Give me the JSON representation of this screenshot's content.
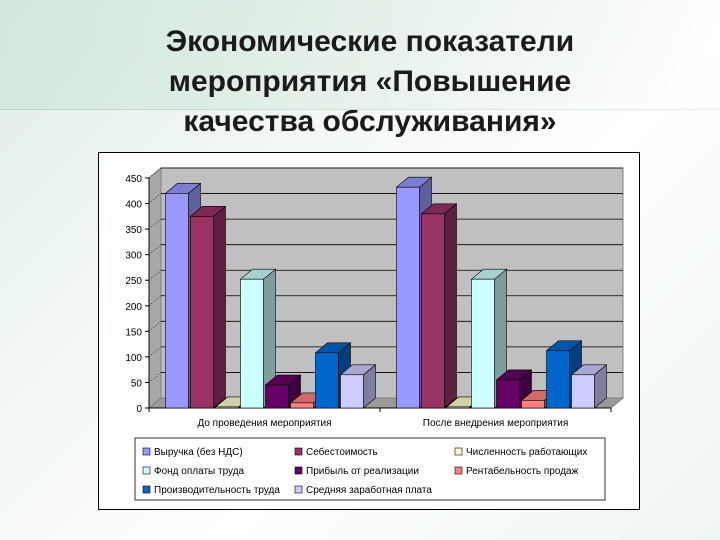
{
  "slide": {
    "title_lines": [
      "Экономические показатели",
      "мероприятия «Повышение",
      "качества обслуживания»"
    ]
  },
  "chart_data": {
    "type": "bar",
    "title": "",
    "xlabel": "",
    "ylabel": "",
    "ylim": [
      0,
      450
    ],
    "yticks": [
      0,
      50,
      100,
      150,
      200,
      250,
      300,
      350,
      400,
      450
    ],
    "categories": [
      "До проведения мероприятия",
      "После внедрения мероприятия"
    ],
    "grid": true,
    "three_d": true,
    "legend_position": "bottom",
    "series": [
      {
        "name": "Выручка (без НДС)",
        "values": [
          420,
          432
        ],
        "color": "#9999ff"
      },
      {
        "name": "Себестоимость",
        "values": [
          375,
          380
        ],
        "color": "#993366"
      },
      {
        "name": "Численность работающих",
        "values": [
          2,
          2
        ],
        "color": "#ffffcc"
      },
      {
        "name": "Фонд оплаты труда",
        "values": [
          252,
          252
        ],
        "color": "#ccffff"
      },
      {
        "name": "Прибыль от реализации",
        "values": [
          45,
          55
        ],
        "color": "#660066"
      },
      {
        "name": "Рентабельность продаж",
        "values": [
          10,
          15
        ],
        "color": "#ff8080"
      },
      {
        "name": "Производительность труда",
        "values": [
          108,
          112
        ],
        "color": "#0066cc"
      },
      {
        "name": "Средняя заработная плата",
        "values": [
          65,
          65
        ],
        "color": "#ccccff"
      }
    ]
  }
}
